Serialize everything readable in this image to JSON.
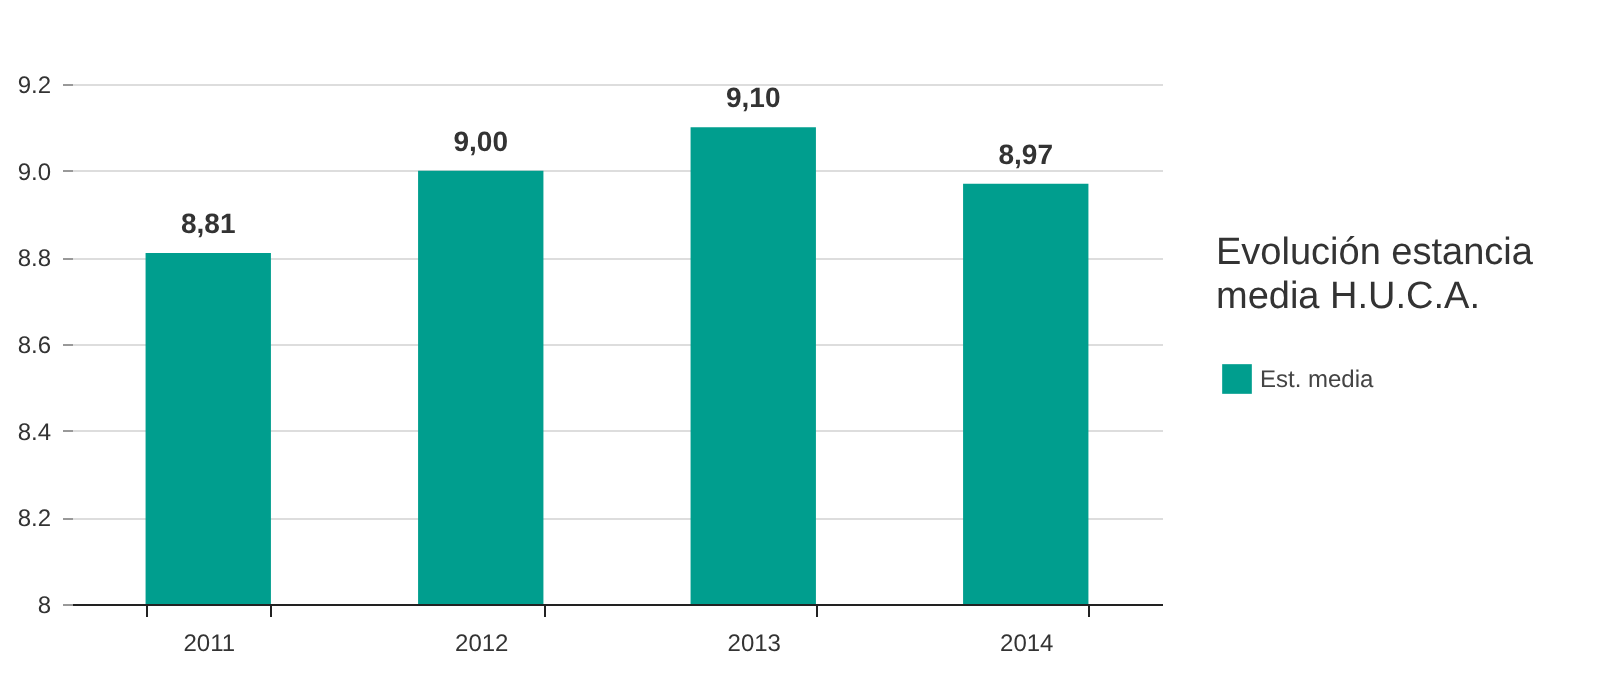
{
  "chart_data": {
    "type": "bar",
    "title": "Evolución estancia media H.U.C.A.",
    "categories": [
      "2011",
      "2012",
      "2013",
      "2014"
    ],
    "series": [
      {
        "name": "Est. media",
        "color": "#009e8e",
        "values": [
          8.81,
          9.0,
          9.1,
          8.97
        ],
        "value_labels": [
          "8,81",
          "9,00",
          "9,10",
          "8,97"
        ]
      }
    ],
    "ylim": [
      8,
      9.2
    ],
    "yticks": [
      8,
      8.2,
      8.4,
      8.6,
      8.8,
      {
        "value": 9,
        "label": "9.0"
      },
      9.2
    ],
    "grid": "y",
    "legend": "right"
  }
}
